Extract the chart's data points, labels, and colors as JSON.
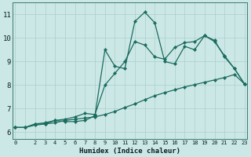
{
  "xlabel": "Humidex (Indice chaleur)",
  "bg_color": "#cce8e6",
  "grid_color": "#aacfcc",
  "line_color": "#1a6b5e",
  "xlim": [
    -0.3,
    23.3
  ],
  "ylim": [
    5.7,
    11.5
  ],
  "xticks": [
    0,
    2,
    3,
    4,
    5,
    6,
    7,
    8,
    9,
    10,
    11,
    12,
    13,
    14,
    15,
    16,
    17,
    18,
    19,
    20,
    21,
    22,
    23
  ],
  "yticks": [
    6,
    7,
    8,
    9,
    10,
    11
  ],
  "series": [
    [
      6.2,
      6.2,
      6.35,
      6.35,
      6.5,
      6.45,
      6.45,
      6.5,
      6.7,
      9.5,
      8.8,
      8.7,
      10.7,
      11.1,
      10.65,
      9.0,
      8.9,
      9.65,
      9.5,
      10.1,
      9.9,
      9.2,
      8.7,
      8.05
    ],
    [
      6.2,
      6.2,
      6.35,
      6.4,
      6.5,
      6.55,
      6.65,
      6.8,
      6.75,
      8.0,
      8.5,
      9.0,
      9.85,
      9.7,
      9.2,
      9.1,
      9.6,
      9.8,
      9.85,
      10.1,
      9.85,
      9.25,
      8.7,
      8.05
    ],
    [
      6.2,
      6.2,
      6.3,
      6.35,
      6.4,
      6.5,
      6.55,
      6.6,
      6.65,
      6.75,
      6.88,
      7.05,
      7.2,
      7.38,
      7.55,
      7.68,
      7.8,
      7.92,
      8.02,
      8.12,
      8.22,
      8.32,
      8.45,
      8.05
    ]
  ]
}
